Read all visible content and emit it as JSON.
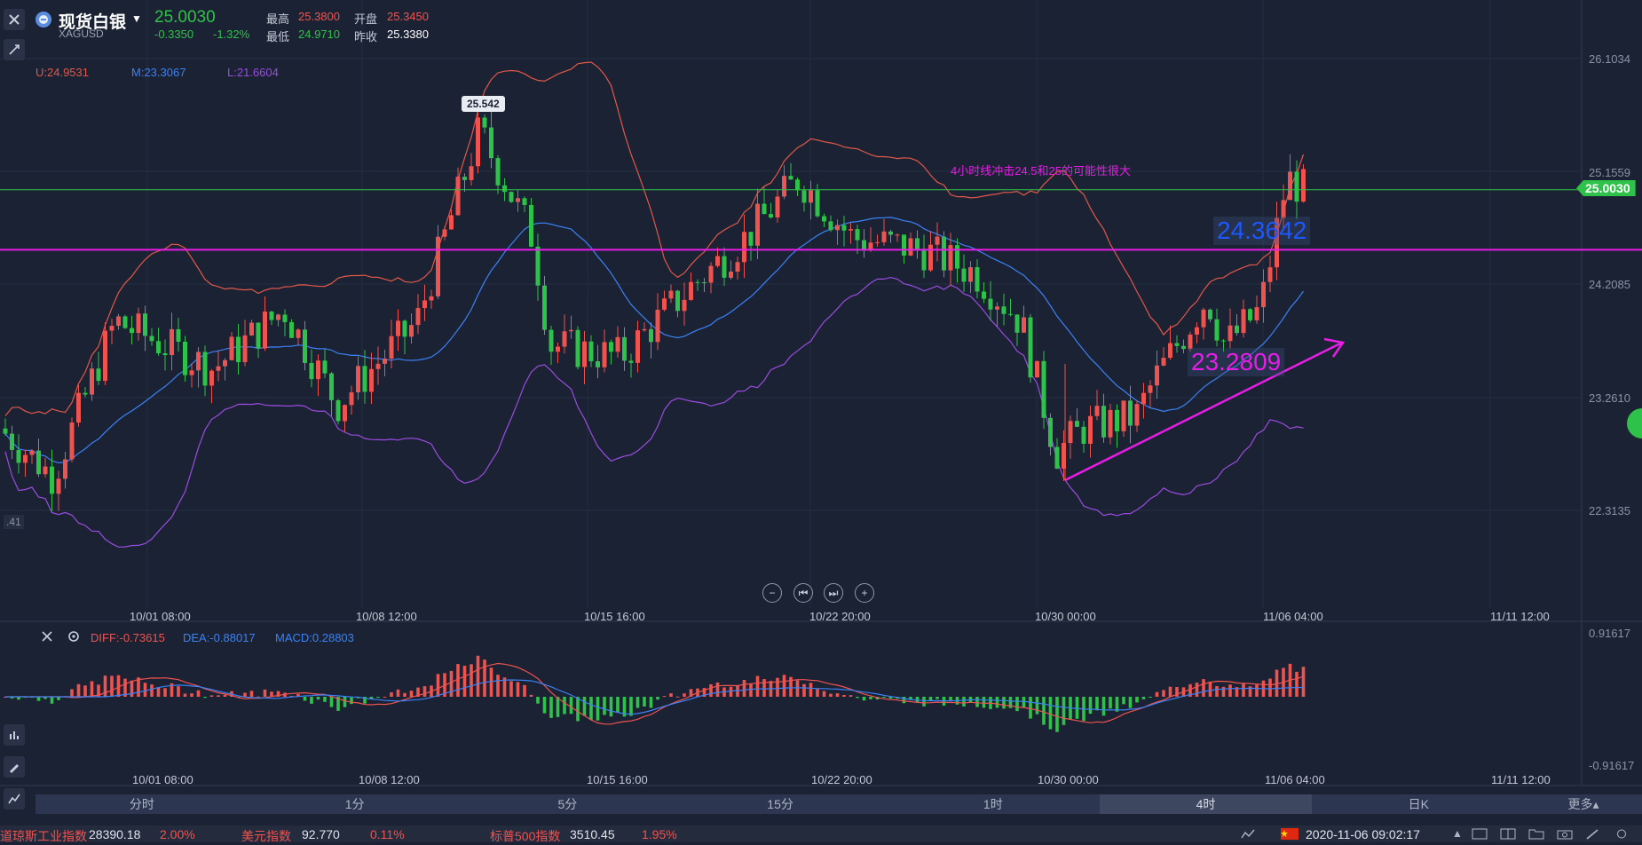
{
  "header": {
    "title": "现货白银",
    "symbol": "XAGUSD",
    "price": "25.0030",
    "change": "-0.3350",
    "change_pct": "-1.32%",
    "high_label": "最高",
    "high": "25.3800",
    "open_label": "开盘",
    "open": "25.3450",
    "low_label": "最低",
    "low": "24.9710",
    "prev_label": "昨收",
    "prev": "25.3380"
  },
  "bollinger": {
    "u": "U:24.9531",
    "m": "M:23.3067",
    "l": "L:21.6604"
  },
  "price_axis": [
    "26.1034",
    "25.1559",
    "24.2085",
    "23.2610",
    "22.3135"
  ],
  "current_price_tag": "25.0030",
  "left_edge_label": ".41",
  "annotations": {
    "peak_callout": "25.542",
    "note": "4小时线冲击24.5和25的可能性很大",
    "level_upper": "24.3642",
    "level_lower": "23.2809"
  },
  "time_axis": [
    "10/01 08:00",
    "10/08 12:00",
    "10/15 16:00",
    "10/22 20:00",
    "10/30 00:00",
    "11/06 04:00",
    "11/11 12:00"
  ],
  "macd": {
    "diff": "DIFF:-0.73615",
    "dea": "DEA:-0.88017",
    "macd": "MACD:0.28803",
    "axis_top": "0.91617",
    "axis_bottom": "-0.91617"
  },
  "nav_buttons": [
    "−",
    "⏮",
    "⏭",
    "+"
  ],
  "tabs": [
    "分时",
    "1分",
    "5分",
    "15分",
    "1时",
    "4时",
    "日K",
    "更多▴"
  ],
  "active_tab": "4时",
  "ticker": [
    {
      "name": "道琼斯工业指数",
      "value": "28390.18",
      "pct": "2.00%"
    },
    {
      "name": "美元指数",
      "value": "92.770",
      "pct": "0.11%"
    },
    {
      "name": "标普500指数",
      "value": "3510.45",
      "pct": "1.95%"
    }
  ],
  "status_time": "2020-11-06 09:02:17",
  "colors": {
    "bg": "#1b2233",
    "up": "#ef5350",
    "down": "#2fc24a",
    "boll_u": "#e0584a",
    "boll_m": "#3b82f6",
    "boll_l": "#9a4ce0",
    "magenta": "#e81de8"
  }
}
